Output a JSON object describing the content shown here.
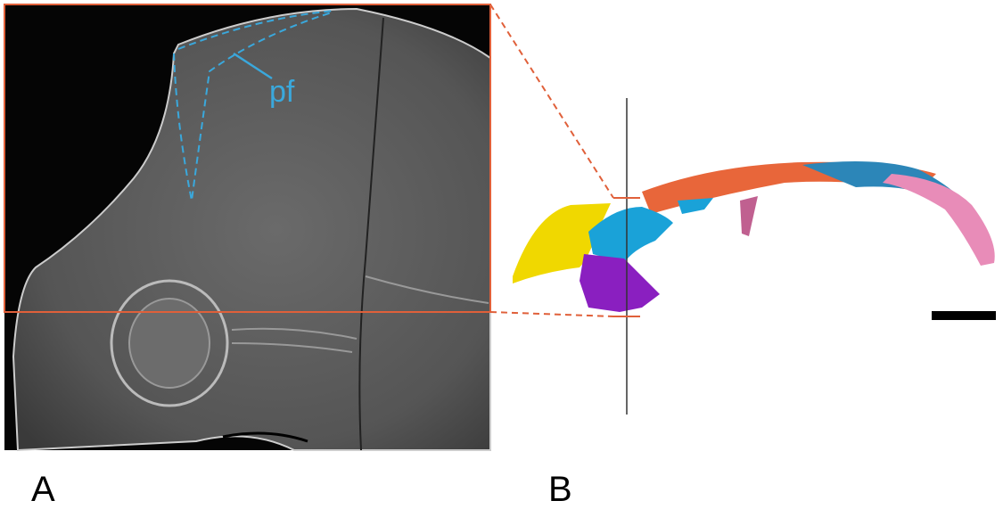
{
  "panels": [
    {
      "label": "A",
      "annotation": "pf"
    },
    {
      "label": "B"
    }
  ]
}
